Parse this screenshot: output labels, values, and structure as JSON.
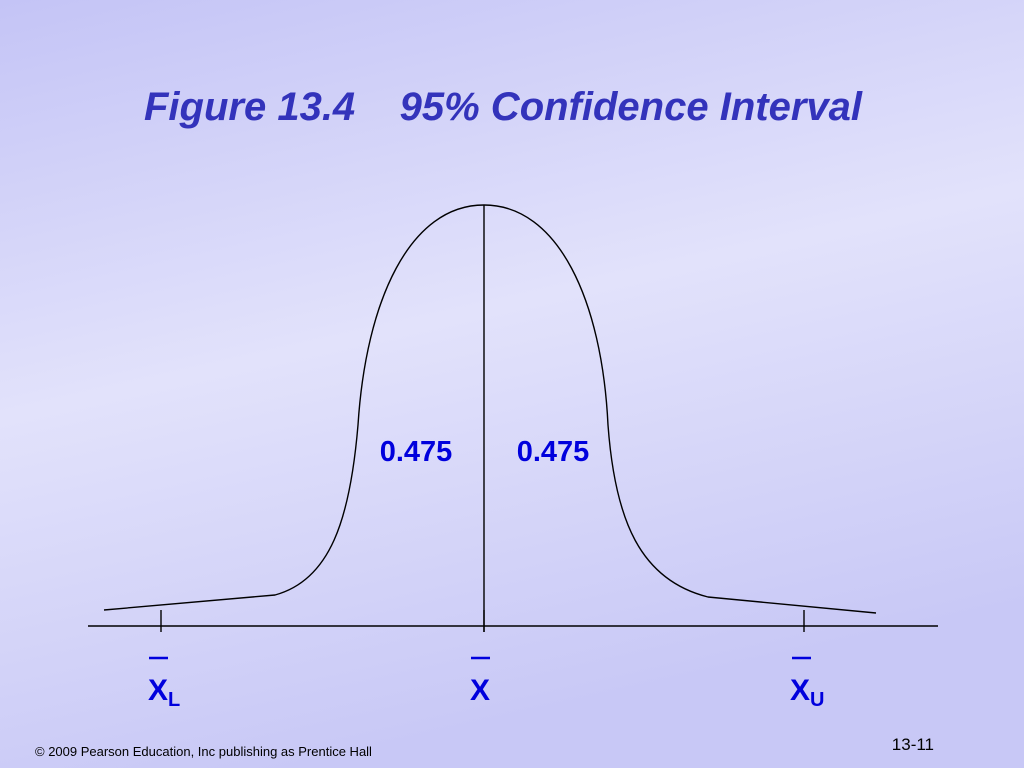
{
  "title": "Figure 13.4    95% Confidence Interval",
  "areas": [
    {
      "label": "0.475"
    },
    {
      "label": "0.475"
    }
  ],
  "axis_labels": [
    {
      "symbol": "X",
      "subscript": "L"
    },
    {
      "symbol": "X"
    },
    {
      "symbol": "X",
      "subscript": "U"
    }
  ],
  "footer": "© 2009 Pearson Education, Inc publishing as Prentice Hall",
  "page_number": "13-11"
}
